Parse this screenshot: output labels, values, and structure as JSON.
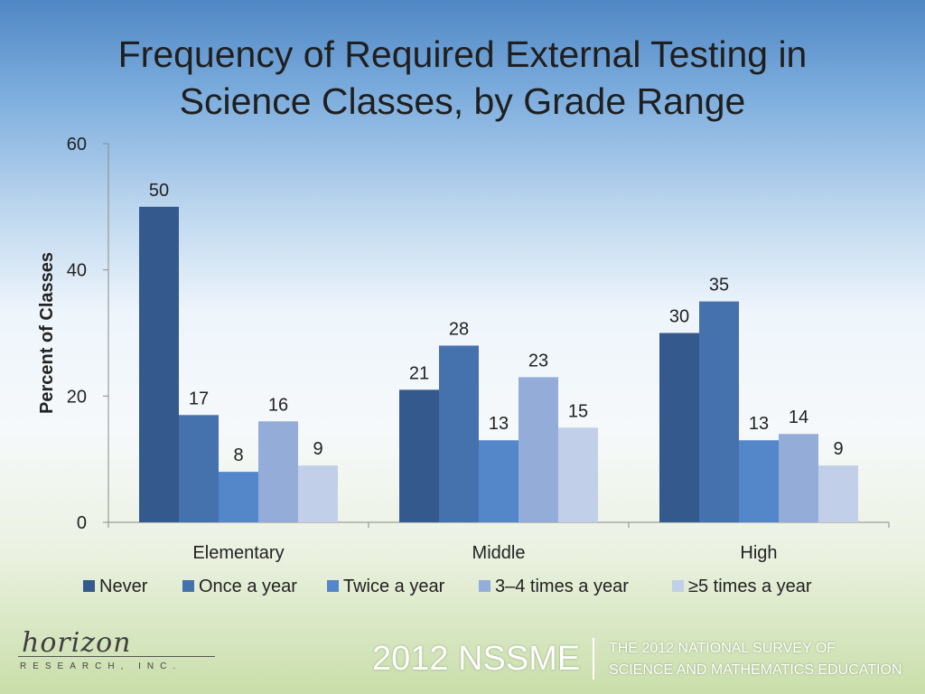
{
  "title_line1": "Frequency of Required External Testing in",
  "title_line2": "Science Classes, by Grade Range",
  "footer": {
    "logo_script": "horizon",
    "logo_sub": "RESEARCH, INC.",
    "nssme": "2012 NSSME",
    "survey_line1": "THE 2012 NATIONAL SURVEY OF",
    "survey_line2": "SCIENCE AND MATHEMATICS EDUCATION"
  },
  "chart_data": {
    "type": "bar",
    "title": "Frequency of Required External Testing in Science Classes, by Grade Range",
    "xlabel": "",
    "ylabel": "Percent of Classes",
    "ylim": [
      0,
      60
    ],
    "yticks": [
      0,
      20,
      40,
      60
    ],
    "grid": false,
    "legend_position": "bottom",
    "categories": [
      "Elementary",
      "Middle",
      "High"
    ],
    "series": [
      {
        "name": "Never",
        "values": [
          50,
          21,
          30
        ],
        "color": "#34598d"
      },
      {
        "name": "Once a year",
        "values": [
          17,
          28,
          35
        ],
        "color": "#4571ac"
      },
      {
        "name": "Twice a year",
        "values": [
          8,
          13,
          13
        ],
        "color": "#5387c9"
      },
      {
        "name": "3–4 times a year",
        "values": [
          16,
          23,
          14
        ],
        "color": "#93add8"
      },
      {
        "name": "≥5 times a year",
        "values": [
          9,
          15,
          9
        ],
        "color": "#c2cfe8"
      }
    ]
  }
}
